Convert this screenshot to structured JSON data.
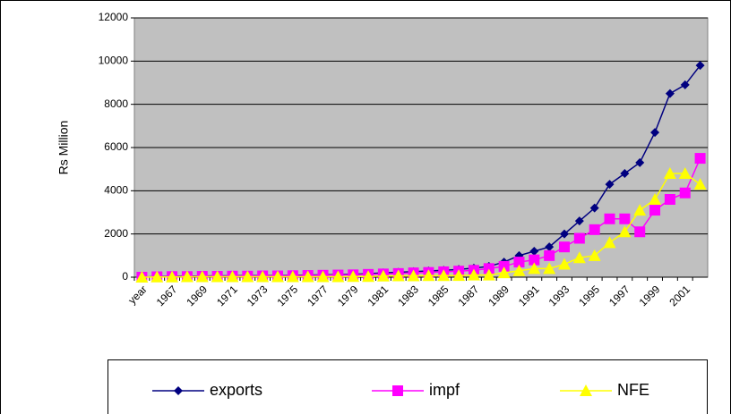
{
  "chart_data": {
    "type": "line",
    "y_label": "Rs Million",
    "categories": [
      "year",
      null,
      "1967",
      null,
      "1969",
      null,
      "1971",
      null,
      "1973",
      null,
      "1975",
      null,
      "1977",
      null,
      "1979",
      null,
      "1981",
      null,
      "1983",
      null,
      "1985",
      null,
      "1987",
      null,
      "1989",
      null,
      "1991",
      null,
      "1993",
      null,
      "1995",
      null,
      "1997",
      null,
      "1999",
      null,
      "2001",
      null
    ],
    "series": [
      {
        "name": "exports",
        "color": "#000080",
        "marker": "diamond",
        "values": [
          0,
          30,
          40,
          50,
          50,
          60,
          60,
          70,
          70,
          80,
          90,
          100,
          110,
          120,
          140,
          160,
          200,
          230,
          260,
          290,
          320,
          360,
          420,
          500,
          700,
          1000,
          1200,
          1400,
          2000,
          2600,
          3200,
          4300,
          4800,
          5300,
          6700,
          8500,
          8900,
          9800
        ]
      },
      {
        "name": "impf",
        "color": "#ff00ff",
        "marker": "square",
        "values": [
          0,
          20,
          30,
          30,
          40,
          40,
          50,
          50,
          60,
          60,
          70,
          80,
          90,
          100,
          110,
          130,
          150,
          170,
          200,
          220,
          250,
          280,
          320,
          400,
          500,
          700,
          800,
          1000,
          1400,
          1800,
          2200,
          2700,
          2700,
          2100,
          3100,
          3600,
          3900,
          5500
        ]
      },
      {
        "name": "NFE",
        "color": "#ffff00",
        "marker": "triangle",
        "values": [
          0,
          10,
          10,
          20,
          20,
          20,
          20,
          20,
          20,
          20,
          20,
          20,
          20,
          20,
          30,
          30,
          50,
          60,
          60,
          70,
          70,
          80,
          100,
          100,
          200,
          300,
          400,
          400,
          600,
          900,
          1000,
          1600,
          2100,
          3100,
          3600,
          4800,
          4800,
          4300
        ]
      }
    ],
    "ylim": [
      0,
      12000
    ],
    "yticks": [
      0,
      2000,
      4000,
      6000,
      8000,
      10000,
      12000
    ],
    "grid": true,
    "plot_background": "#c0c0c0",
    "legend": "bottom"
  }
}
